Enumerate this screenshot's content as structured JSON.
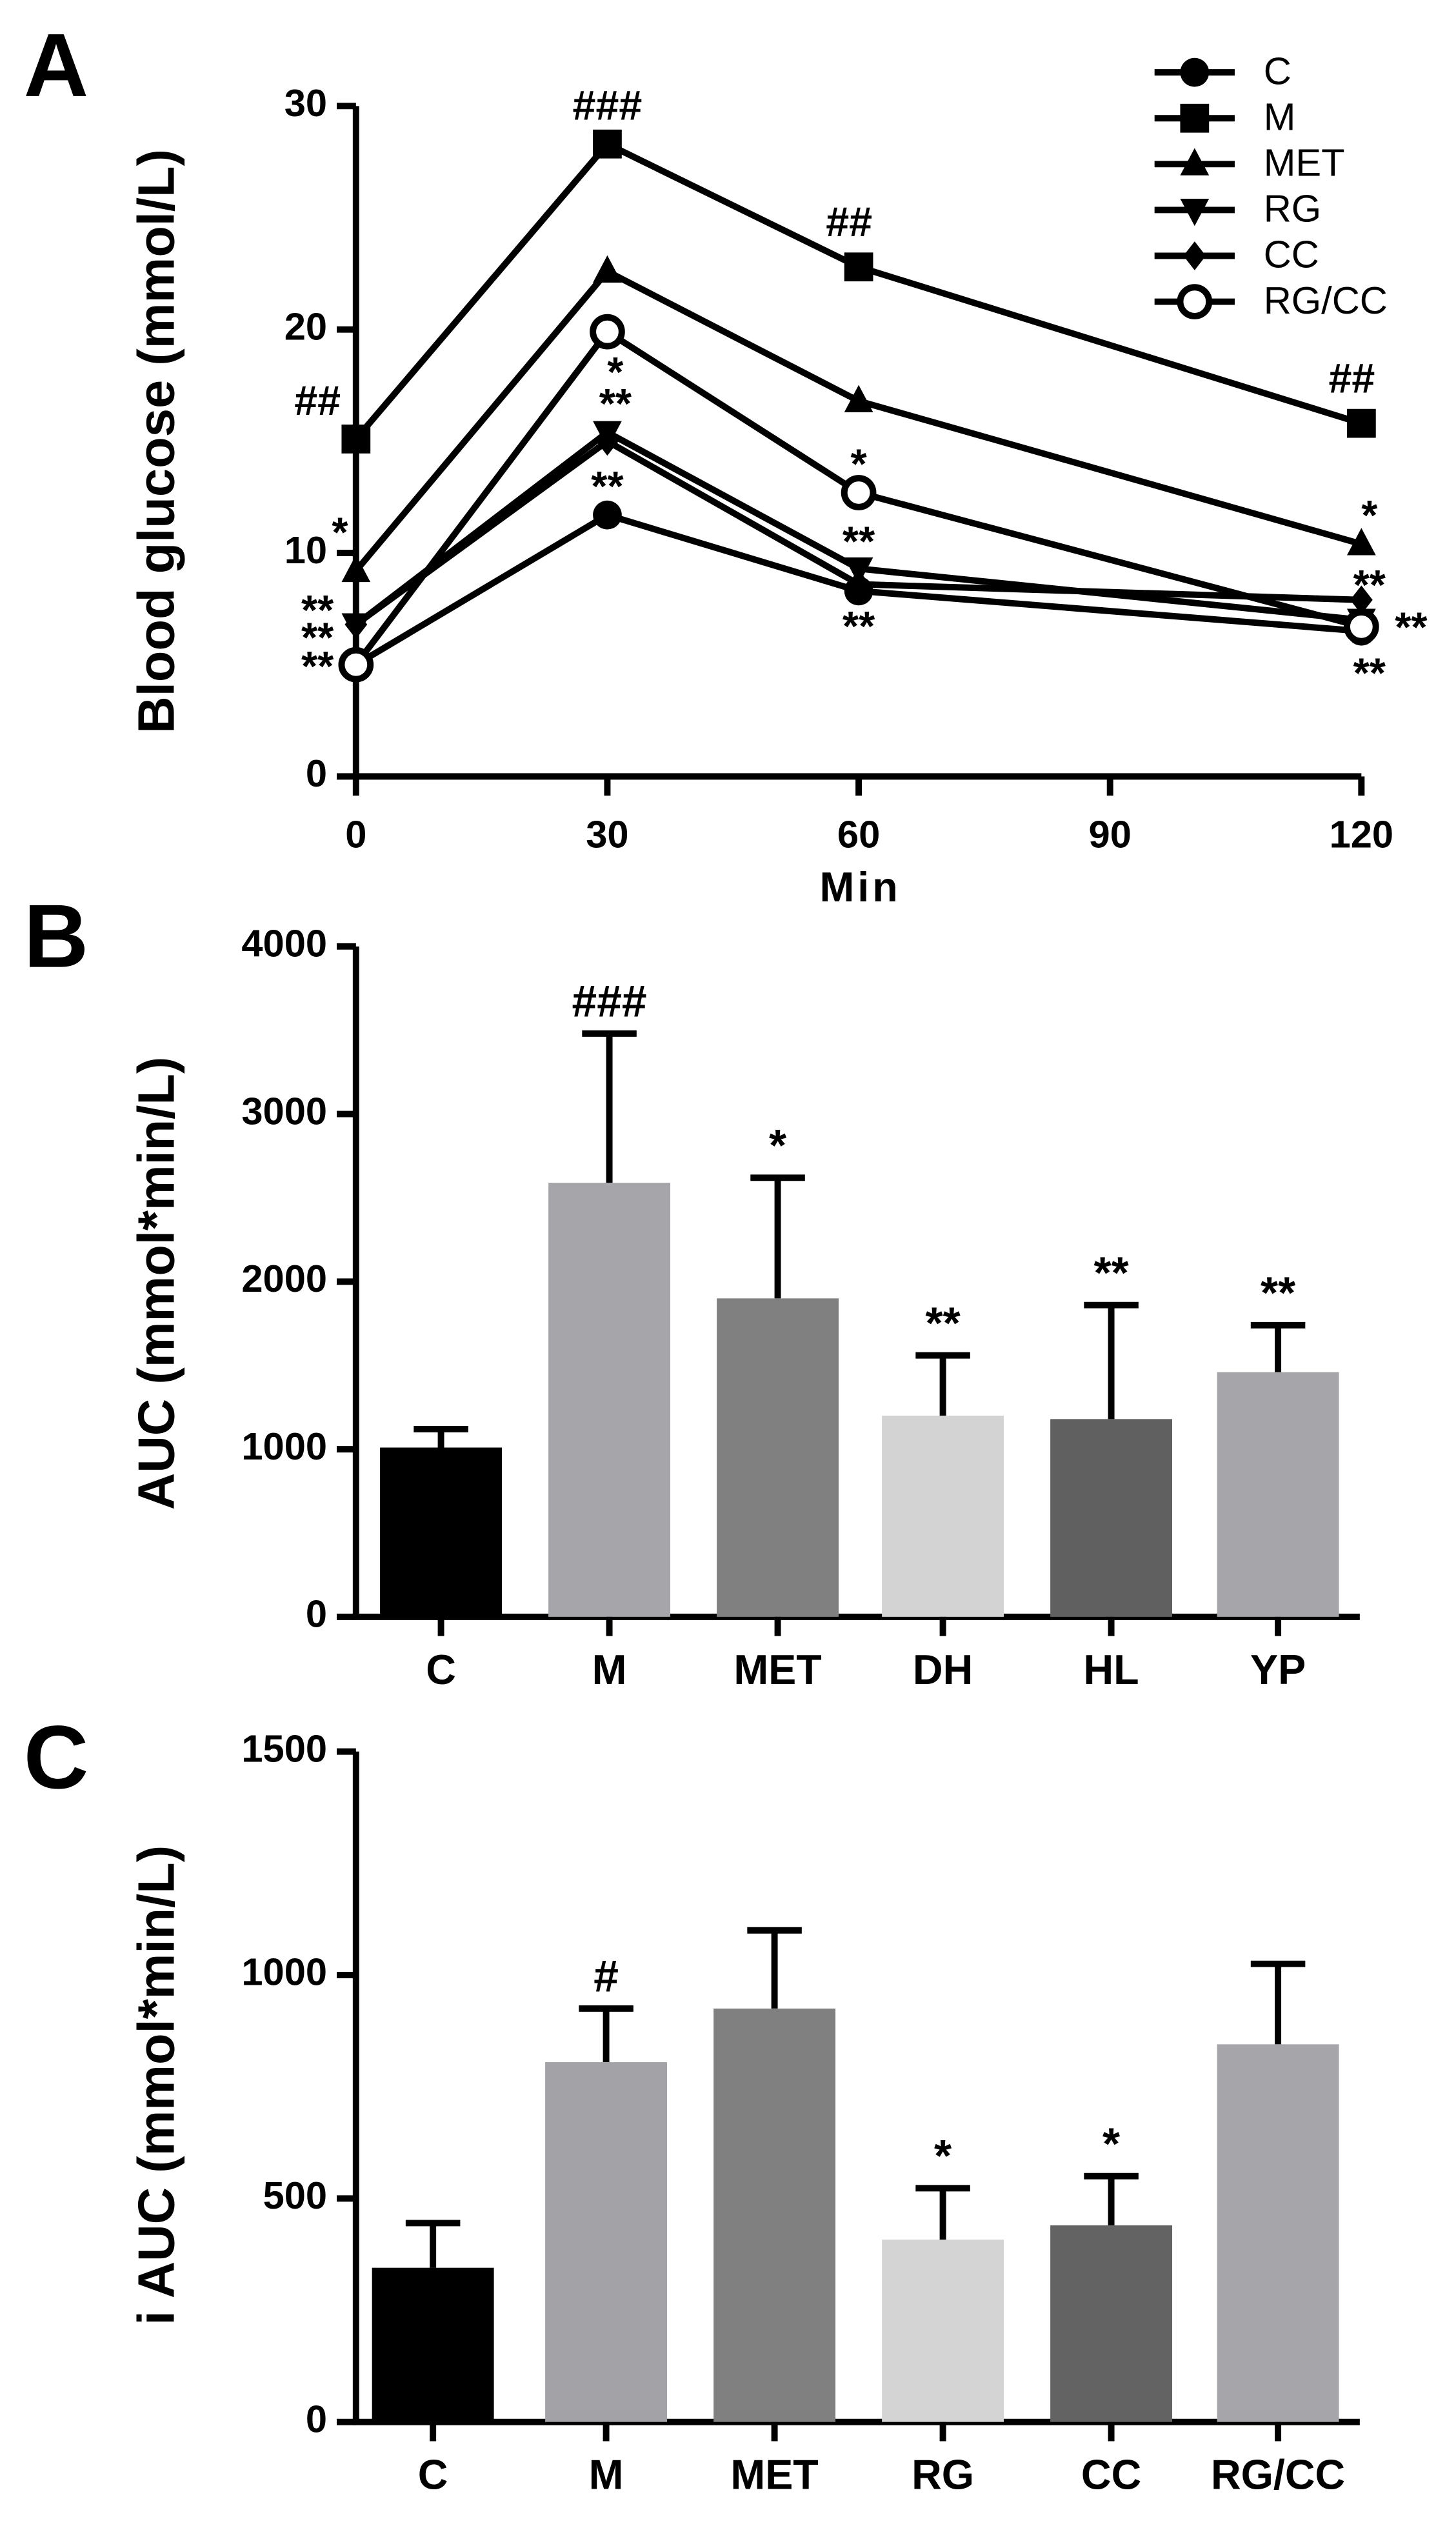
{
  "chart_data": [
    {
      "type": "line",
      "panel_label": "A",
      "ylabel": "Blood glucose (mmol/L)",
      "xlabel": "Min",
      "x": [
        0,
        30,
        60,
        120
      ],
      "xlim": [
        0,
        120
      ],
      "xticks": [
        0,
        30,
        60,
        90,
        120
      ],
      "ylim": [
        0,
        30
      ],
      "yticks": [
        0,
        10,
        20,
        30
      ],
      "legend": "upper right",
      "series": [
        {
          "name": "C",
          "color": "#000000",
          "marker": "circle",
          "values": [
            5.0,
            11.7,
            8.3,
            6.5
          ],
          "annotations": [
            "**",
            "**",
            "**",
            "**"
          ]
        },
        {
          "name": "M",
          "color": "#000000",
          "marker": "square",
          "values": [
            15.1,
            28.3,
            22.8,
            15.8
          ],
          "annotations": [
            "##",
            "###",
            "##",
            "##"
          ]
        },
        {
          "name": "MET",
          "color": "#000000",
          "marker": "triangle",
          "values": [
            9.2,
            22.6,
            16.8,
            10.4
          ],
          "annotations": [
            "*",
            null,
            null,
            "*"
          ]
        },
        {
          "name": "RG",
          "color": "#000000",
          "marker": "triangle-down",
          "values": [
            6.8,
            15.4,
            9.3,
            7.0
          ],
          "annotations": [
            "**",
            "**",
            "**",
            "**"
          ]
        },
        {
          "name": "CC",
          "color": "#000000",
          "marker": "diamond",
          "values": [
            6.8,
            15.0,
            8.6,
            7.9
          ],
          "annotations": [
            "**",
            null,
            null,
            "**"
          ]
        },
        {
          "name": "RG/CC",
          "color": "#000000",
          "marker": "open-circle",
          "values": [
            5.0,
            19.9,
            12.7,
            6.7
          ],
          "annotations": [
            null,
            "*",
            "*",
            null
          ]
        }
      ]
    },
    {
      "type": "bar",
      "panel_label": "B",
      "ylabel": "AUC (mmol*min/L)",
      "categories": [
        "C",
        "M",
        "MET",
        "DH",
        "HL",
        "YP"
      ],
      "values": [
        1010,
        2590,
        1900,
        1200,
        1180,
        1460
      ],
      "errors": [
        110,
        890,
        720,
        360,
        680,
        280
      ],
      "annotations": [
        null,
        "###",
        "*",
        "**",
        "**",
        "**"
      ],
      "colors": [
        "#000000",
        "#a6a6aa",
        "#808080",
        "#d3d3d3",
        "#606060",
        "#a6a6aa"
      ],
      "ylim": [
        0,
        4000
      ],
      "yticks": [
        0,
        1000,
        2000,
        3000,
        4000
      ]
    },
    {
      "type": "bar",
      "panel_label": "C",
      "ylabel": "i AUC (mmol*min/L)",
      "categories": [
        "C",
        "M",
        "MET",
        "RG",
        "CC",
        "RG/CC"
      ],
      "values": [
        345,
        805,
        925,
        408,
        440,
        845
      ],
      "errors": [
        100,
        120,
        175,
        115,
        110,
        180
      ],
      "annotations": [
        null,
        "#",
        null,
        "*",
        "*",
        null
      ],
      "colors": [
        "#000000",
        "#a3a3a7",
        "#808080",
        "#d4d4d4",
        "#636363",
        "#a6a6aa"
      ],
      "ylim": [
        0,
        1500
      ],
      "yticks": [
        0,
        500,
        1000,
        1500
      ]
    }
  ]
}
